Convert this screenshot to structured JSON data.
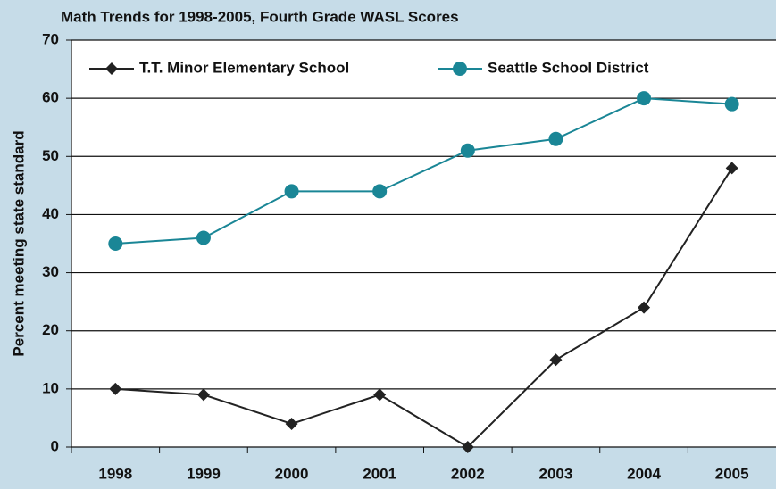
{
  "chart_data": {
    "type": "line",
    "title": "Math Trends for 1998-2005, Fourth Grade WASL Scores",
    "y_label": "Percent meeting state standard",
    "categories": [
      "1998",
      "1999",
      "2000",
      "2001",
      "2002",
      "2003",
      "2004",
      "2005"
    ],
    "series": [
      {
        "name": "T.T. Minor Elementary School",
        "color": "#222222",
        "marker": "diamond",
        "values": [
          10,
          9,
          4,
          9,
          0,
          15,
          24,
          48
        ]
      },
      {
        "name": "Seattle School District",
        "color": "#1a8696",
        "marker": "circle",
        "values": [
          35,
          36,
          44,
          44,
          51,
          53,
          60,
          59
        ]
      }
    ],
    "ylim": [
      0,
      70
    ],
    "yticks": [
      0,
      10,
      20,
      30,
      40,
      50,
      60,
      70
    ],
    "grid": true,
    "legend": "top"
  }
}
